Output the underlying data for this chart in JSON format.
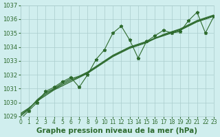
{
  "x": [
    0,
    1,
    2,
    3,
    4,
    5,
    6,
    7,
    8,
    9,
    10,
    11,
    12,
    13,
    14,
    15,
    16,
    17,
    18,
    19,
    20,
    21,
    22,
    23
  ],
  "y_main": [
    1028.8,
    1029.4,
    1030.0,
    1030.8,
    1031.1,
    1031.5,
    1031.8,
    1031.1,
    1032.0,
    1033.1,
    1033.8,
    1035.0,
    1035.5,
    1034.5,
    1033.2,
    1034.4,
    1034.8,
    1035.2,
    1035.0,
    1035.1,
    1035.9,
    1036.5,
    1035.0,
    1036.2
  ],
  "y_smooth1": [
    1029.0,
    1029.5,
    1030.2,
    1030.7,
    1031.0,
    1031.4,
    1031.7,
    1031.9,
    1032.2,
    1032.6,
    1033.0,
    1033.4,
    1033.7,
    1034.0,
    1034.2,
    1034.4,
    1034.6,
    1034.8,
    1035.0,
    1035.2,
    1035.5,
    1035.8,
    1036.0,
    1036.2
  ],
  "y_smooth2": [
    1029.2,
    1029.6,
    1030.1,
    1030.5,
    1030.9,
    1031.2,
    1031.5,
    1031.8,
    1032.1,
    1032.5,
    1032.9,
    1033.3,
    1033.6,
    1033.9,
    1034.1,
    1034.3,
    1034.6,
    1034.9,
    1035.1,
    1035.3,
    1035.6,
    1035.9,
    1036.1,
    1036.3
  ],
  "y_smooth3": [
    1029.1,
    1029.55,
    1030.15,
    1030.6,
    1030.95,
    1031.3,
    1031.6,
    1031.85,
    1032.15,
    1032.55,
    1032.95,
    1033.35,
    1033.65,
    1033.95,
    1034.15,
    1034.35,
    1034.65,
    1034.85,
    1035.05,
    1035.25,
    1035.55,
    1035.85,
    1036.05,
    1036.25
  ],
  "line_color": "#2d6a2d",
  "bg_color": "#d0eeee",
  "grid_color": "#aacccc",
  "ylim": [
    1029,
    1037
  ],
  "xlim": [
    0,
    23
  ],
  "yticks": [
    1029,
    1030,
    1031,
    1032,
    1033,
    1034,
    1035,
    1036,
    1037
  ],
  "xticks": [
    0,
    1,
    2,
    3,
    4,
    5,
    6,
    7,
    8,
    9,
    10,
    11,
    12,
    13,
    14,
    15,
    16,
    17,
    18,
    19,
    20,
    21,
    22,
    23
  ],
  "xlabel": "Graphe pression niveau de la mer (hPa)",
  "xlabel_fontsize": 7.5,
  "ytick_fontsize": 6,
  "xtick_fontsize": 5.5
}
